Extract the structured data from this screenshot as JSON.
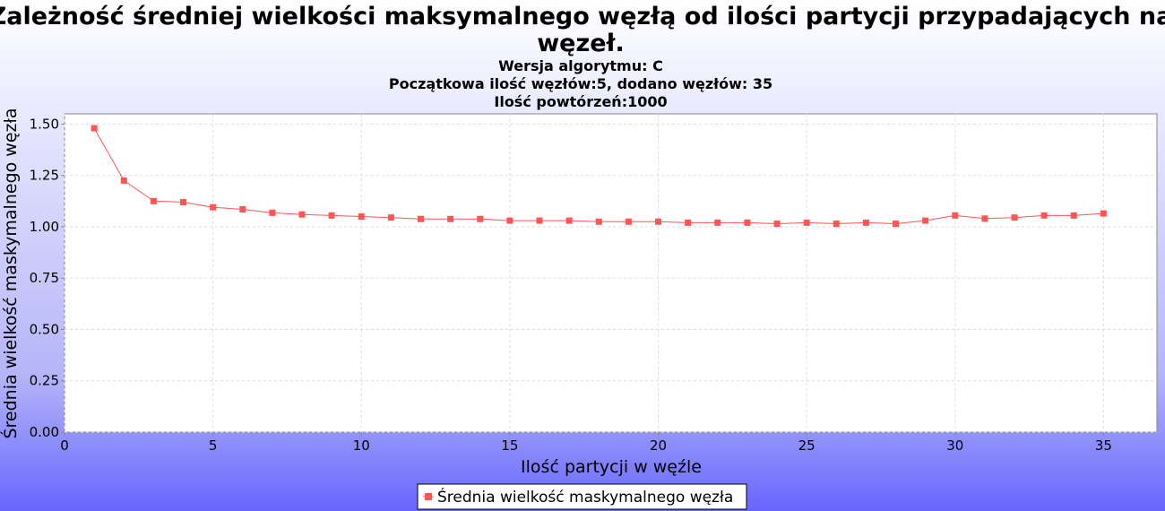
{
  "colors": {
    "series": "#ff5555",
    "plot_bg": "#ffffff",
    "grid": "#dddddd"
  },
  "chart_data": {
    "type": "line",
    "title_line1": "Zależność średniej wielkości maksymalnego węzłą od ilości partycji przypadających na",
    "title_line2": "węzeł.",
    "subtitles": [
      "Wersja algorytmu: C",
      "Początkowa ilość węzłów:5, dodano węzłów: 35",
      "Ilość powtórzeń:1000"
    ],
    "xlabel": "Ilość partycji w węźle",
    "ylabel": "Średnia wielkość maskymalnego węzła",
    "xlim": [
      0,
      36.8
    ],
    "ylim": [
      0,
      1.55
    ],
    "xticks": [
      0,
      5,
      10,
      15,
      20,
      25,
      30,
      35
    ],
    "yticks": [
      0,
      0.25,
      0.5,
      0.75,
      1.0,
      1.25,
      1.5
    ],
    "ytick_labels": [
      "0.00",
      "0.25",
      "0.50",
      "0.75",
      "1.00",
      "1.25",
      "1.50"
    ],
    "grid": true,
    "legend_position": "bottom",
    "series": [
      {
        "name": "Średnia wielkość maskymalnego węzła",
        "marker": "square",
        "x": [
          1,
          2,
          3,
          4,
          5,
          6,
          7,
          8,
          9,
          10,
          11,
          12,
          13,
          14,
          15,
          16,
          17,
          18,
          19,
          20,
          21,
          22,
          23,
          24,
          25,
          26,
          27,
          28,
          29,
          30,
          31,
          32,
          33,
          34,
          35
        ],
        "y": [
          1.48,
          1.225,
          1.125,
          1.12,
          1.095,
          1.085,
          1.068,
          1.06,
          1.055,
          1.05,
          1.045,
          1.038,
          1.038,
          1.038,
          1.03,
          1.03,
          1.03,
          1.025,
          1.025,
          1.025,
          1.02,
          1.02,
          1.02,
          1.015,
          1.02,
          1.015,
          1.02,
          1.015,
          1.03,
          1.055,
          1.04,
          1.045,
          1.055,
          1.055,
          1.065
        ]
      }
    ]
  }
}
